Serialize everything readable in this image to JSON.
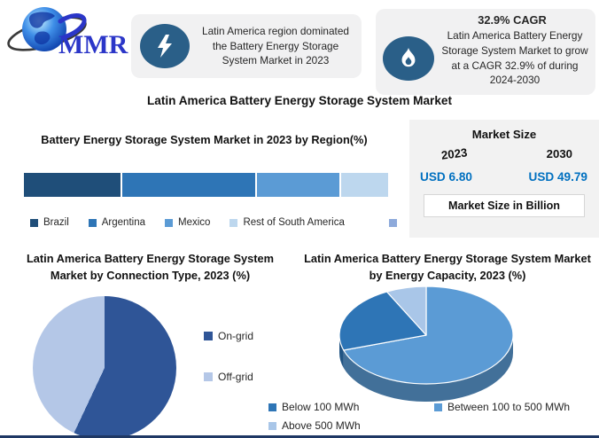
{
  "brand": {
    "name": "MMR"
  },
  "callout_left": {
    "text": "Latin America region dominated the Battery Energy Storage System Market in 2023"
  },
  "callout_right": {
    "title": "32.9% CAGR",
    "text": "Latin America Battery Energy Storage System Market to grow at a CAGR 32.9% of during 2024-2030"
  },
  "main_title": "Latin America Battery Energy Storage System Market",
  "market_size": {
    "title": "Market Size",
    "year_left": "2023",
    "year_right": "2030",
    "value_left": "USD 6.80",
    "value_right": "USD 49.79",
    "footer": "Market Size in Billion",
    "value_color": "#0070C0"
  },
  "chart_data": [
    {
      "id": "region_bar",
      "type": "bar",
      "variant": "horizontal-stacked-single-bar",
      "title": "Battery Energy Storage System Market in 2023 by Region(%)",
      "categories": [
        "Brazil",
        "Argentina",
        "Mexico",
        "Rest of South America"
      ],
      "values": [
        27,
        37,
        23,
        13
      ],
      "segments": [
        {
          "label": "Brazil",
          "value": 27,
          "color": "#1F4E79"
        },
        {
          "label": "Argentina",
          "value": 37,
          "color": "#2E75B6"
        },
        {
          "label": "Mexico",
          "value": 23,
          "color": "#5B9BD5"
        },
        {
          "label": "Rest of South America",
          "value": 13,
          "color": "#BDD7EE"
        }
      ],
      "extra_swatch": {
        "label": "",
        "color": "#8EAADB"
      },
      "legend_position": "bottom",
      "xlim": [
        0,
        100
      ]
    },
    {
      "id": "connection_pie",
      "type": "pie",
      "title": "Latin America Battery Energy Storage System Market by Connection Type, 2023 (%)",
      "slices": [
        {
          "label": "On-grid",
          "value": 57,
          "color": "#2F5597"
        },
        {
          "label": "Off-grid",
          "value": 43,
          "color": "#B4C7E7"
        }
      ],
      "start_angle_deg": 0,
      "legend_position": "right"
    },
    {
      "id": "capacity_pie",
      "type": "pie",
      "variant": "3d",
      "title": "Latin America Battery Energy Storage System Market by Energy Capacity, 2023 (%)",
      "slices": [
        {
          "label": "Between 100 to 500 MWh",
          "value": 70,
          "color": "#5B9BD5"
        },
        {
          "label": "Below 100 MWh",
          "value": 22.5,
          "color": "#2E75B6"
        },
        {
          "label": "Above 500 MWh",
          "value": 7.5,
          "color": "#A9C6E8"
        }
      ],
      "legend_columns": [
        [
          "Below 100 MWh",
          "Above 500 MWh"
        ],
        [
          "Between 100 to 500 MWh"
        ]
      ],
      "start_angle_deg": 0,
      "legend_position": "bottom"
    }
  ]
}
